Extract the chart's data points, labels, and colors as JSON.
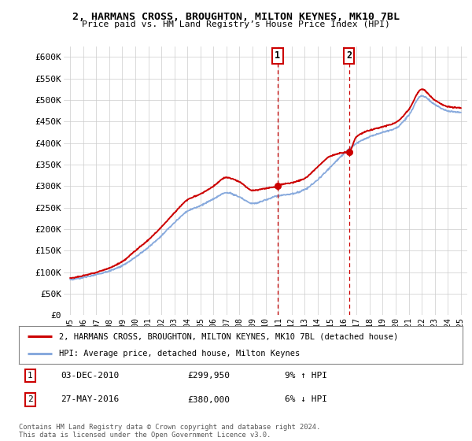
{
  "title_line1": "2, HARMANS CROSS, BROUGHTON, MILTON KEYNES, MK10 7BL",
  "title_line2": "Price paid vs. HM Land Registry’s House Price Index (HPI)",
  "ylabel_ticks": [
    "£0",
    "£50K",
    "£100K",
    "£150K",
    "£200K",
    "£250K",
    "£300K",
    "£350K",
    "£400K",
    "£450K",
    "£500K",
    "£550K",
    "£600K"
  ],
  "ytick_values": [
    0,
    50000,
    100000,
    150000,
    200000,
    250000,
    300000,
    350000,
    400000,
    450000,
    500000,
    550000,
    600000
  ],
  "ylim": [
    0,
    625000
  ],
  "xlim_left": 1994.5,
  "xlim_right": 2025.5,
  "red_line_color": "#cc0000",
  "blue_line_color": "#88aadd",
  "marker1_year": 2010.92,
  "marker1_label": "1",
  "marker1_date": "03-DEC-2010",
  "marker1_price": 299950,
  "marker1_pct": "9% ↑ HPI",
  "marker2_year": 2016.41,
  "marker2_label": "2",
  "marker2_date": "27-MAY-2016",
  "marker2_price": 380000,
  "marker2_pct": "6% ↓ HPI",
  "legend_red_label": "2, HARMANS CROSS, BROUGHTON, MILTON KEYNES, MK10 7BL (detached house)",
  "legend_blue_label": "HPI: Average price, detached house, Milton Keynes",
  "footer": "Contains HM Land Registry data © Crown copyright and database right 2024.\nThis data is licensed under the Open Government Licence v3.0.",
  "background_color": "#ffffff",
  "grid_color": "#cccccc",
  "hpi_knots_x": [
    1995,
    1996,
    1997,
    1998,
    1999,
    2000,
    2001,
    2002,
    2003,
    2004,
    2005,
    2006,
    2007,
    2008,
    2009,
    2010,
    2011,
    2012,
    2013,
    2014,
    2015,
    2016,
    2017,
    2018,
    2019,
    2020,
    2021,
    2022,
    2023,
    2024,
    2025
  ],
  "hpi_knots_y": [
    82000,
    88000,
    95000,
    103000,
    115000,
    135000,
    158000,
    185000,
    215000,
    242000,
    255000,
    270000,
    285000,
    275000,
    260000,
    268000,
    278000,
    282000,
    292000,
    315000,
    345000,
    375000,
    400000,
    415000,
    425000,
    435000,
    465000,
    510000,
    490000,
    475000,
    472000
  ],
  "red_knots_x": [
    1995,
    1996,
    1997,
    1998,
    1999,
    2000,
    2001,
    2002,
    2003,
    2004,
    2005,
    2006,
    2007,
    2008,
    2009,
    2010,
    2010.92,
    2011,
    2012,
    2013,
    2014,
    2015,
    2016,
    2016.41,
    2017,
    2018,
    2019,
    2020,
    2021,
    2022,
    2023,
    2024,
    2025
  ],
  "red_knots_y": [
    86000,
    92000,
    100000,
    110000,
    125000,
    150000,
    175000,
    205000,
    238000,
    268000,
    282000,
    300000,
    320000,
    310000,
    290000,
    295000,
    299950,
    302000,
    308000,
    318000,
    345000,
    370000,
    378000,
    380000,
    415000,
    430000,
    438000,
    448000,
    478000,
    525000,
    500000,
    485000,
    482000
  ]
}
